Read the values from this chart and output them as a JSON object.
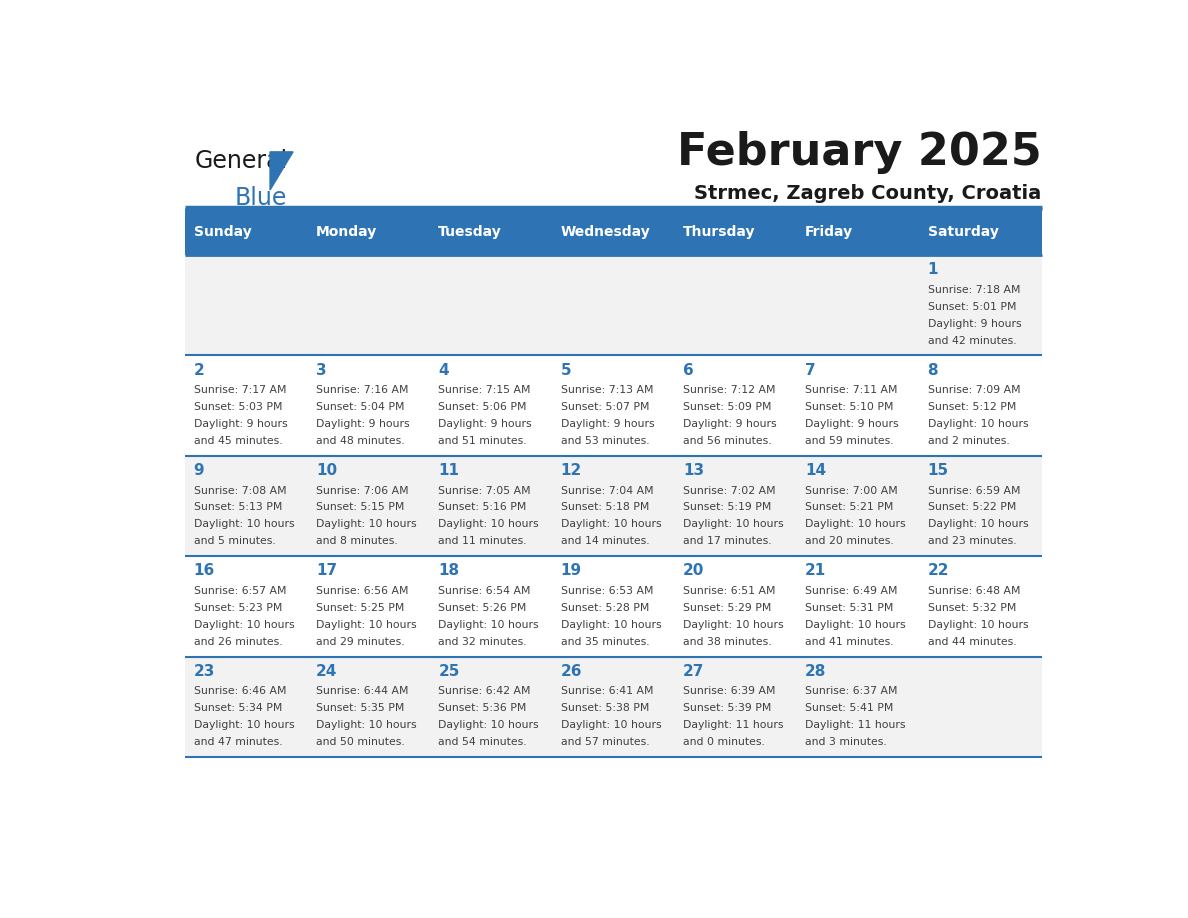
{
  "title": "February 2025",
  "subtitle": "Strmec, Zagreb County, Croatia",
  "days_of_week": [
    "Sunday",
    "Monday",
    "Tuesday",
    "Wednesday",
    "Thursday",
    "Friday",
    "Saturday"
  ],
  "header_bg": "#2E74B5",
  "header_text_color": "#FFFFFF",
  "row_bg_odd": "#F2F2F2",
  "row_bg_even": "#FFFFFF",
  "separator_color": "#2E74B5",
  "day_number_color": "#2E74B5",
  "cell_text_color": "#404040",
  "title_color": "#1a1a1a",
  "subtitle_color": "#1a1a1a",
  "logo_general_color": "#1a1a1a",
  "logo_blue_color": "#2E74B5",
  "calendar_data": [
    [
      {
        "day": null,
        "text": ""
      },
      {
        "day": null,
        "text": ""
      },
      {
        "day": null,
        "text": ""
      },
      {
        "day": null,
        "text": ""
      },
      {
        "day": null,
        "text": ""
      },
      {
        "day": null,
        "text": ""
      },
      {
        "day": 1,
        "text": "Sunrise: 7:18 AM\nSunset: 5:01 PM\nDaylight: 9 hours\nand 42 minutes."
      }
    ],
    [
      {
        "day": 2,
        "text": "Sunrise: 7:17 AM\nSunset: 5:03 PM\nDaylight: 9 hours\nand 45 minutes."
      },
      {
        "day": 3,
        "text": "Sunrise: 7:16 AM\nSunset: 5:04 PM\nDaylight: 9 hours\nand 48 minutes."
      },
      {
        "day": 4,
        "text": "Sunrise: 7:15 AM\nSunset: 5:06 PM\nDaylight: 9 hours\nand 51 minutes."
      },
      {
        "day": 5,
        "text": "Sunrise: 7:13 AM\nSunset: 5:07 PM\nDaylight: 9 hours\nand 53 minutes."
      },
      {
        "day": 6,
        "text": "Sunrise: 7:12 AM\nSunset: 5:09 PM\nDaylight: 9 hours\nand 56 minutes."
      },
      {
        "day": 7,
        "text": "Sunrise: 7:11 AM\nSunset: 5:10 PM\nDaylight: 9 hours\nand 59 minutes."
      },
      {
        "day": 8,
        "text": "Sunrise: 7:09 AM\nSunset: 5:12 PM\nDaylight: 10 hours\nand 2 minutes."
      }
    ],
    [
      {
        "day": 9,
        "text": "Sunrise: 7:08 AM\nSunset: 5:13 PM\nDaylight: 10 hours\nand 5 minutes."
      },
      {
        "day": 10,
        "text": "Sunrise: 7:06 AM\nSunset: 5:15 PM\nDaylight: 10 hours\nand 8 minutes."
      },
      {
        "day": 11,
        "text": "Sunrise: 7:05 AM\nSunset: 5:16 PM\nDaylight: 10 hours\nand 11 minutes."
      },
      {
        "day": 12,
        "text": "Sunrise: 7:04 AM\nSunset: 5:18 PM\nDaylight: 10 hours\nand 14 minutes."
      },
      {
        "day": 13,
        "text": "Sunrise: 7:02 AM\nSunset: 5:19 PM\nDaylight: 10 hours\nand 17 minutes."
      },
      {
        "day": 14,
        "text": "Sunrise: 7:00 AM\nSunset: 5:21 PM\nDaylight: 10 hours\nand 20 minutes."
      },
      {
        "day": 15,
        "text": "Sunrise: 6:59 AM\nSunset: 5:22 PM\nDaylight: 10 hours\nand 23 minutes."
      }
    ],
    [
      {
        "day": 16,
        "text": "Sunrise: 6:57 AM\nSunset: 5:23 PM\nDaylight: 10 hours\nand 26 minutes."
      },
      {
        "day": 17,
        "text": "Sunrise: 6:56 AM\nSunset: 5:25 PM\nDaylight: 10 hours\nand 29 minutes."
      },
      {
        "day": 18,
        "text": "Sunrise: 6:54 AM\nSunset: 5:26 PM\nDaylight: 10 hours\nand 32 minutes."
      },
      {
        "day": 19,
        "text": "Sunrise: 6:53 AM\nSunset: 5:28 PM\nDaylight: 10 hours\nand 35 minutes."
      },
      {
        "day": 20,
        "text": "Sunrise: 6:51 AM\nSunset: 5:29 PM\nDaylight: 10 hours\nand 38 minutes."
      },
      {
        "day": 21,
        "text": "Sunrise: 6:49 AM\nSunset: 5:31 PM\nDaylight: 10 hours\nand 41 minutes."
      },
      {
        "day": 22,
        "text": "Sunrise: 6:48 AM\nSunset: 5:32 PM\nDaylight: 10 hours\nand 44 minutes."
      }
    ],
    [
      {
        "day": 23,
        "text": "Sunrise: 6:46 AM\nSunset: 5:34 PM\nDaylight: 10 hours\nand 47 minutes."
      },
      {
        "day": 24,
        "text": "Sunrise: 6:44 AM\nSunset: 5:35 PM\nDaylight: 10 hours\nand 50 minutes."
      },
      {
        "day": 25,
        "text": "Sunrise: 6:42 AM\nSunset: 5:36 PM\nDaylight: 10 hours\nand 54 minutes."
      },
      {
        "day": 26,
        "text": "Sunrise: 6:41 AM\nSunset: 5:38 PM\nDaylight: 10 hours\nand 57 minutes."
      },
      {
        "day": 27,
        "text": "Sunrise: 6:39 AM\nSunset: 5:39 PM\nDaylight: 11 hours\nand 0 minutes."
      },
      {
        "day": 28,
        "text": "Sunrise: 6:37 AM\nSunset: 5:41 PM\nDaylight: 11 hours\nand 3 minutes."
      },
      {
        "day": null,
        "text": ""
      }
    ]
  ]
}
